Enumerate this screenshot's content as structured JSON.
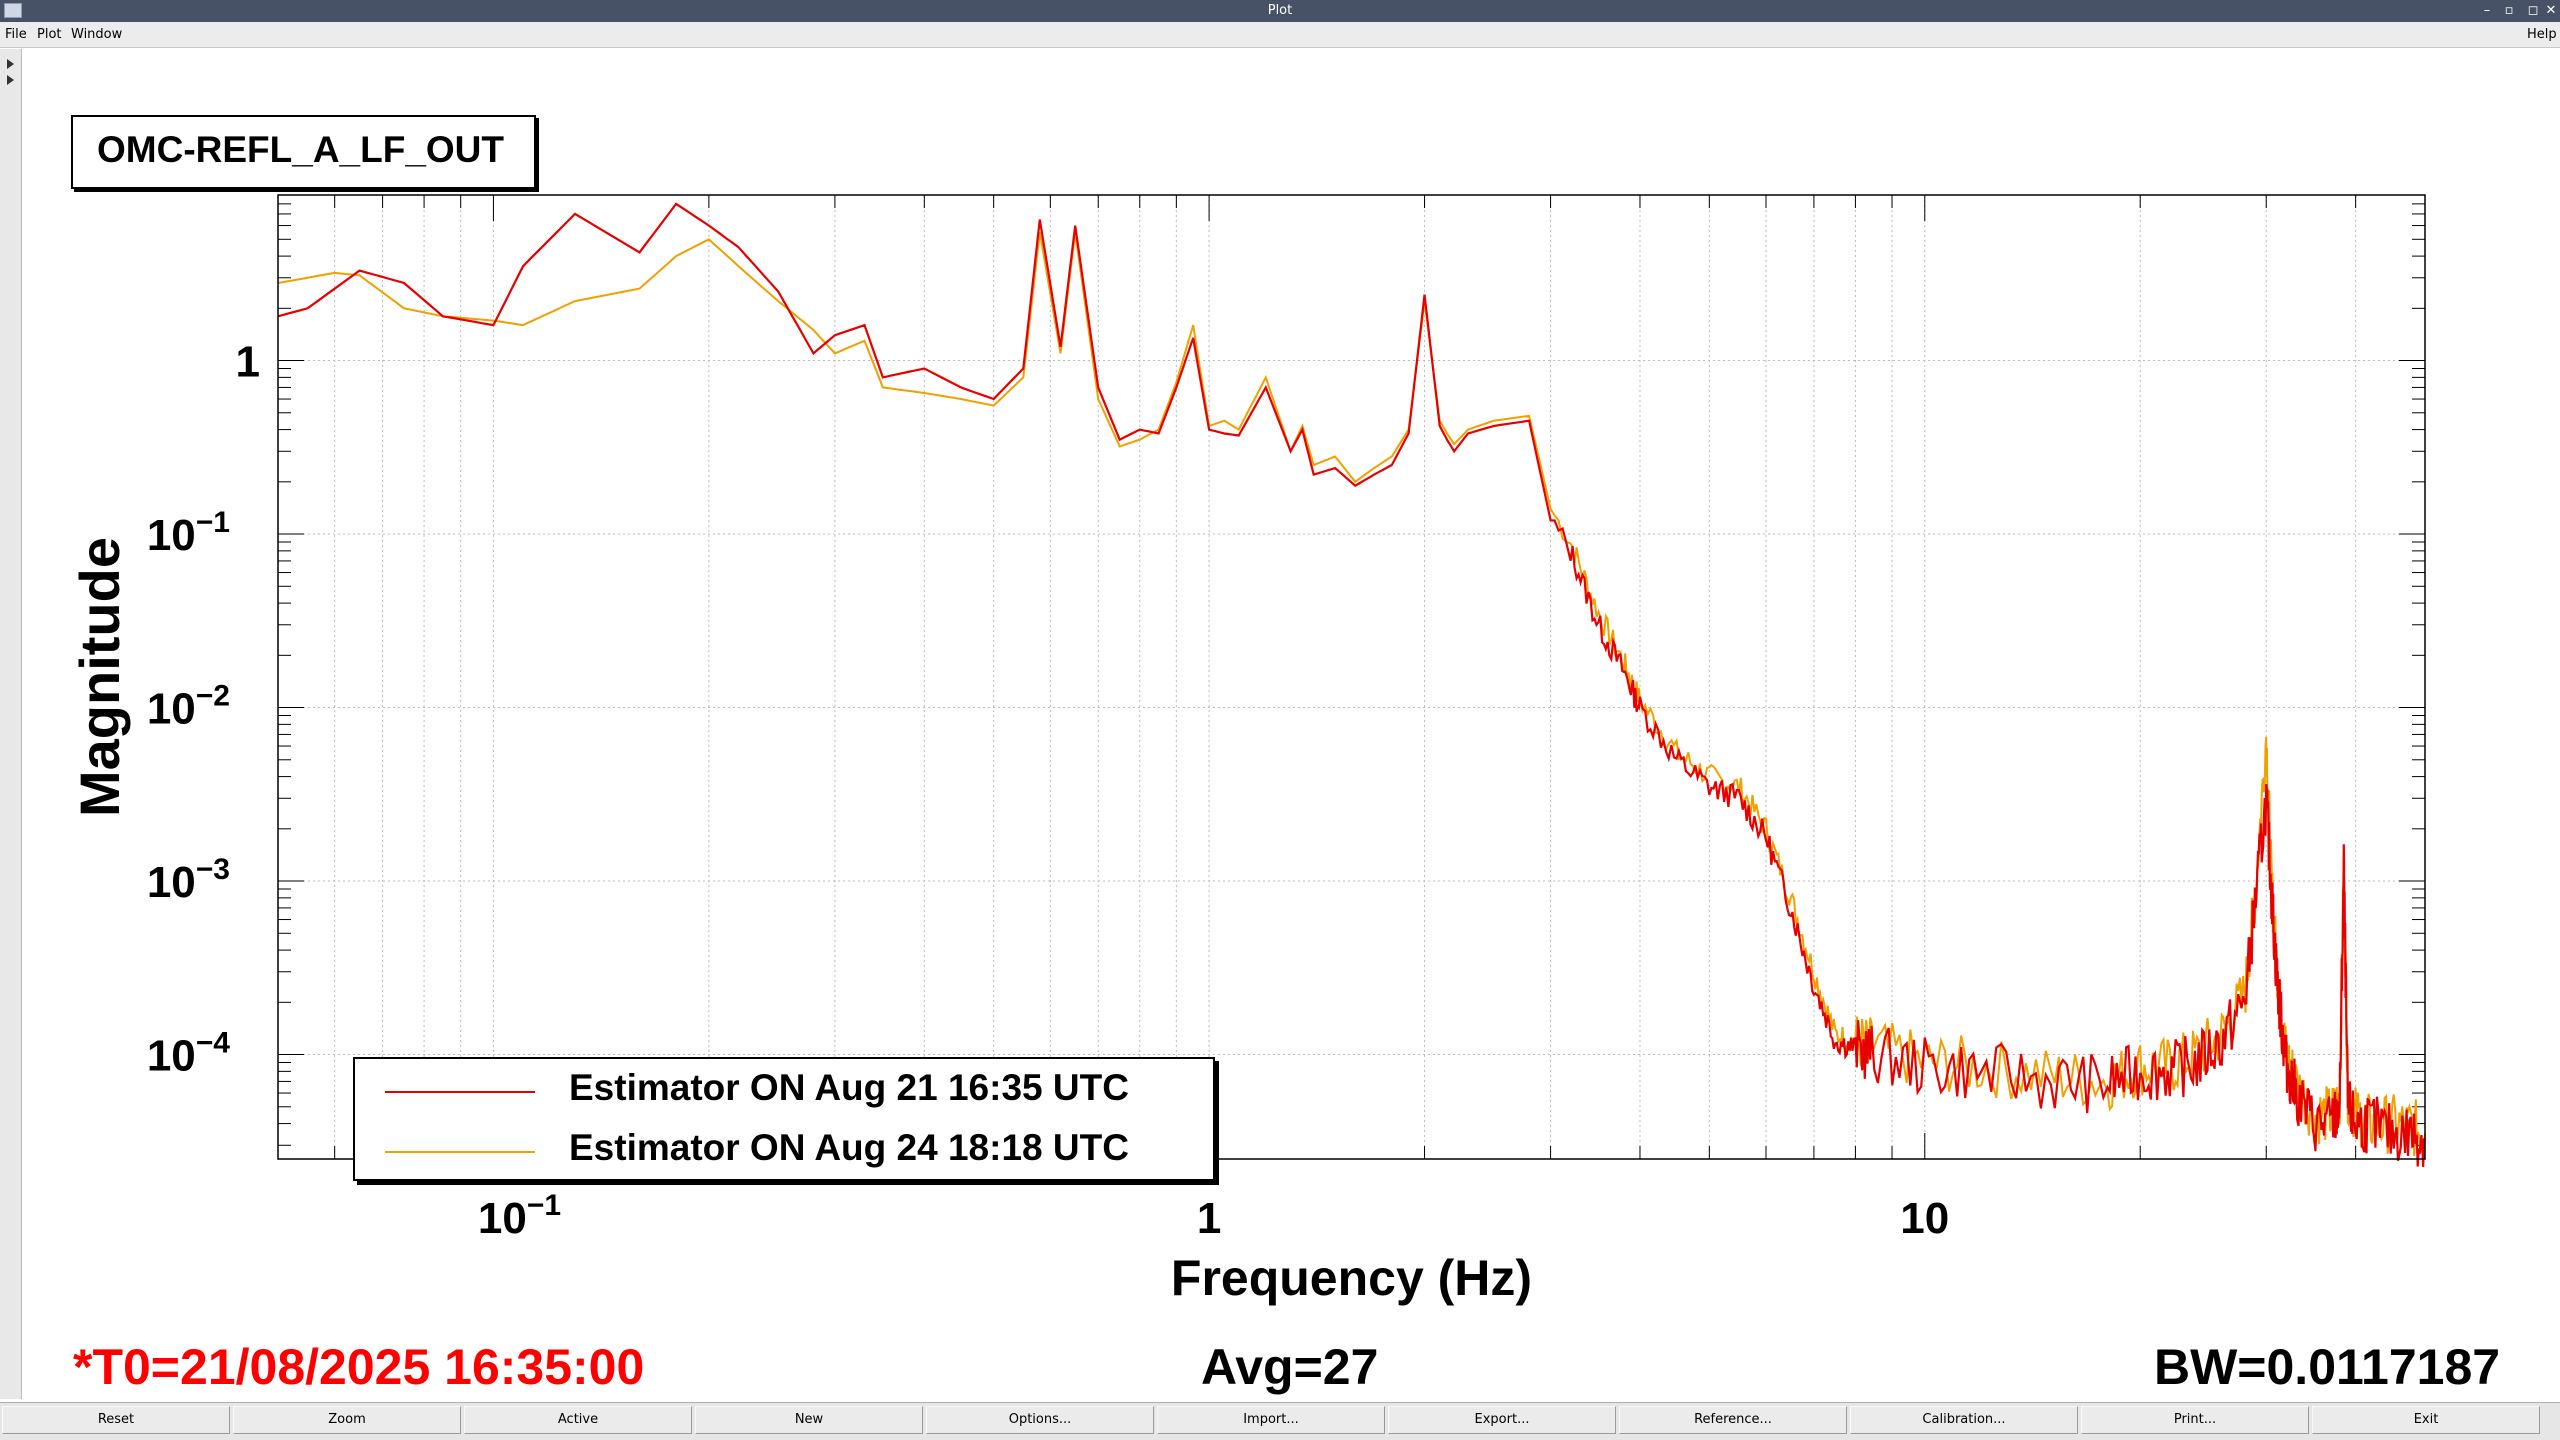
{
  "window": {
    "title": "Plot"
  },
  "menu": {
    "file": "File",
    "plot": "Plot",
    "window": "Window",
    "help": "Help"
  },
  "plot": {
    "title": "OMC-REFL_A_LF_OUT",
    "xlabel": "Frequency (Hz)",
    "ylabel": "Magnitude",
    "t0": "*T0=21/08/2025 16:35:00",
    "avg": "Avg=27",
    "bw": "BW=0.0117187",
    "x_ticks": [
      {
        "value": 0.1,
        "base": "10",
        "exp": "−1"
      },
      {
        "value": 1,
        "base": "1",
        "exp": ""
      },
      {
        "value": 10,
        "base": "10",
        "exp": ""
      }
    ],
    "y_ticks": [
      {
        "value": 1,
        "base": "1",
        "exp": ""
      },
      {
        "value": 0.1,
        "base": "10",
        "exp": "−1"
      },
      {
        "value": 0.01,
        "base": "10",
        "exp": "−2"
      },
      {
        "value": 0.001,
        "base": "10",
        "exp": "−3"
      },
      {
        "value": 0.0001,
        "base": "10",
        "exp": "−4"
      }
    ],
    "colors": {
      "series1": "#e60000",
      "series2": "#f0a000",
      "stat_red": "#ff0000"
    }
  },
  "legend": [
    {
      "label": "Estimator ON Aug 21 16:35 UTC",
      "color": "#e60000"
    },
    {
      "label": "Estimator ON Aug 24 18:18 UTC",
      "color": "#f0a000"
    }
  ],
  "buttons": [
    "Reset",
    "Zoom",
    "Active",
    "New",
    "Options...",
    "Import...",
    "Export...",
    "Reference...",
    "Calibration...",
    "Print...",
    "Exit"
  ],
  "chart_data": {
    "type": "line",
    "xscale": "log",
    "yscale": "log",
    "xlim": [
      0.05,
      50
    ],
    "ylim": [
      2.5e-05,
      9
    ],
    "grid": true,
    "legend_placement": "bottom-left",
    "xlabel": "Frequency (Hz)",
    "ylabel": "Magnitude",
    "series": [
      {
        "name": "Estimator ON Aug 21 16:35 UTC",
        "color": "#e60000",
        "x": [
          0.05,
          0.055,
          0.065,
          0.075,
          0.085,
          0.1,
          0.11,
          0.13,
          0.16,
          0.18,
          0.2,
          0.22,
          0.25,
          0.28,
          0.3,
          0.33,
          0.35,
          0.4,
          0.45,
          0.5,
          0.55,
          0.58,
          0.62,
          0.65,
          0.7,
          0.75,
          0.8,
          0.85,
          0.9,
          0.95,
          1.0,
          1.05,
          1.1,
          1.2,
          1.3,
          1.35,
          1.4,
          1.5,
          1.6,
          1.7,
          1.8,
          1.9,
          2.0,
          2.1,
          2.15,
          2.2,
          2.3,
          2.5,
          2.8,
          3.0,
          3.2,
          3.5,
          3.8,
          4.0,
          4.5,
          5.0,
          5.5,
          6.0,
          6.5,
          7.0,
          7.5,
          8.0,
          8.5,
          10,
          12,
          15,
          18,
          20,
          22,
          24,
          26,
          28,
          29,
          30,
          30.5,
          31,
          31.5,
          32,
          33,
          35,
          37,
          38,
          38.5,
          39,
          40,
          42,
          45,
          48,
          50
        ],
        "y": [
          1.8,
          2.0,
          3.3,
          2.8,
          1.8,
          1.6,
          3.5,
          7.0,
          4.2,
          8.0,
          6.0,
          4.5,
          2.5,
          1.1,
          1.4,
          1.6,
          0.8,
          0.9,
          0.7,
          0.6,
          0.9,
          6.5,
          1.2,
          6.0,
          0.7,
          0.35,
          0.4,
          0.38,
          0.7,
          1.35,
          0.4,
          0.38,
          0.37,
          0.7,
          0.3,
          0.4,
          0.22,
          0.24,
          0.19,
          0.22,
          0.25,
          0.38,
          2.4,
          0.42,
          0.35,
          0.3,
          0.38,
          0.42,
          0.45,
          0.12,
          0.08,
          0.03,
          0.016,
          0.01,
          0.005,
          0.0035,
          0.003,
          0.0018,
          0.0007,
          0.00025,
          0.00012,
          0.00011,
          0.0001,
          8.5e-05,
          8e-05,
          7e-05,
          6.8e-05,
          8e-05,
          8e-05,
          9e-05,
          0.00012,
          0.0002,
          0.0008,
          0.003,
          0.0009,
          0.0003,
          0.00015,
          9e-05,
          6e-05,
          4e-05,
          4e-05,
          5e-05,
          0.0012,
          5e-05,
          4e-05,
          4e-05,
          3.5e-05,
          3.5e-05,
          3.2e-05
        ]
      },
      {
        "name": "Estimator ON Aug 24 18:18 UTC",
        "color": "#f0a000",
        "x": [
          0.05,
          0.06,
          0.065,
          0.075,
          0.085,
          0.1,
          0.11,
          0.13,
          0.16,
          0.18,
          0.2,
          0.22,
          0.25,
          0.28,
          0.3,
          0.33,
          0.35,
          0.4,
          0.45,
          0.5,
          0.55,
          0.58,
          0.62,
          0.65,
          0.7,
          0.75,
          0.8,
          0.85,
          0.9,
          0.95,
          1.0,
          1.05,
          1.1,
          1.2,
          1.3,
          1.35,
          1.4,
          1.5,
          1.6,
          1.7,
          1.8,
          1.9,
          2.0,
          2.1,
          2.15,
          2.2,
          2.3,
          2.5,
          2.8,
          3.0,
          3.2,
          3.5,
          3.8,
          4.0,
          4.5,
          5.0,
          5.5,
          6.0,
          6.5,
          7.0,
          7.5,
          8.0,
          8.5,
          10,
          12,
          15,
          18,
          20,
          22,
          24,
          26,
          28,
          29,
          30,
          30.5,
          31,
          31.5,
          32,
          33,
          35,
          37,
          38,
          38.5,
          39,
          40,
          42,
          45,
          48,
          50
        ],
        "y": [
          2.8,
          3.2,
          3.1,
          2.0,
          1.8,
          1.7,
          1.6,
          2.2,
          2.6,
          4.0,
          5.0,
          3.5,
          2.2,
          1.5,
          1.1,
          1.3,
          0.7,
          0.65,
          0.6,
          0.55,
          0.8,
          5.5,
          1.1,
          5.5,
          0.6,
          0.32,
          0.35,
          0.4,
          0.75,
          1.6,
          0.42,
          0.45,
          0.4,
          0.8,
          0.3,
          0.42,
          0.25,
          0.28,
          0.2,
          0.24,
          0.28,
          0.4,
          2.2,
          0.45,
          0.38,
          0.33,
          0.4,
          0.45,
          0.48,
          0.14,
          0.09,
          0.035,
          0.018,
          0.011,
          0.0055,
          0.004,
          0.0035,
          0.002,
          0.0008,
          0.0003,
          0.00013,
          0.00012,
          0.00011,
          9e-05,
          8.5e-05,
          7.5e-05,
          7e-05,
          8.5e-05,
          8.5e-05,
          0.0001,
          0.00013,
          0.00022,
          0.0009,
          0.007,
          0.001,
          0.00035,
          0.00016,
          0.0001,
          7e-05,
          4.5e-05,
          4.5e-05,
          5.5e-05,
          0.0012,
          6e-05,
          4.5e-05,
          4e-05,
          4e-05,
          3.8e-05,
          3.5e-05
        ]
      }
    ]
  }
}
